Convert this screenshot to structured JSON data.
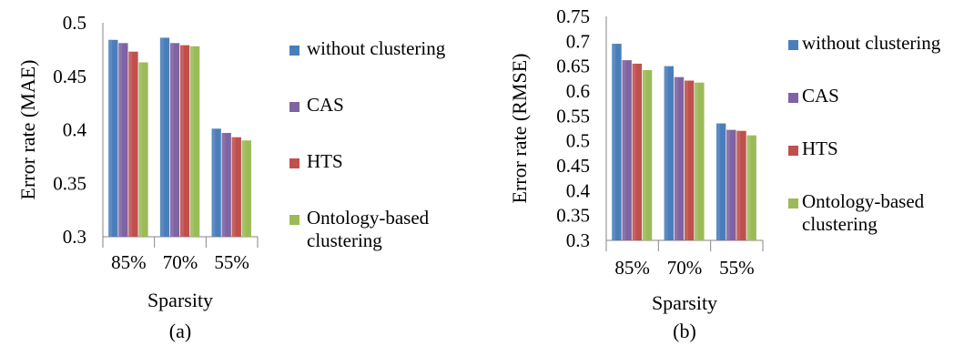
{
  "chart_data": [
    {
      "type": "bar",
      "caption": "(a)",
      "categories": [
        "85%",
        "70%",
        "55%"
      ],
      "xlabel": "Sparsity",
      "ylabel": "Error rate (MAE)",
      "ylim": [
        0.3,
        0.5
      ],
      "yticks": [
        "0.3",
        "0.35",
        "0.4",
        "0.45",
        "0.5"
      ],
      "grid": false,
      "legend_position": "right",
      "series": [
        {
          "name": "without clustering",
          "color": "#4A7EBB",
          "values": [
            0.484,
            0.486,
            0.401
          ]
        },
        {
          "name": "CAS",
          "color": "#7F63A2",
          "values": [
            0.481,
            0.481,
            0.397
          ]
        },
        {
          "name": "HTS",
          "color": "#C0504D",
          "values": [
            0.473,
            0.479,
            0.393
          ]
        },
        {
          "name": "Ontology-based clustering",
          "color": "#9BBB59",
          "values": [
            0.463,
            0.478,
            0.39
          ]
        }
      ]
    },
    {
      "type": "bar",
      "caption": "(b)",
      "categories": [
        "85%",
        "70%",
        "55%"
      ],
      "xlabel": "Sparsity",
      "ylabel": "Error rate (RMSE)",
      "ylim": [
        0.3,
        0.75
      ],
      "yticks": [
        "0.3",
        "0.35",
        "0.4",
        "0.45",
        "0.5",
        "0.55",
        "0.6",
        "0.65",
        "0.7",
        "0.75"
      ],
      "grid": false,
      "legend_position": "right",
      "series": [
        {
          "name": "without clustering",
          "color": "#4A7EBB",
          "values": [
            0.695,
            0.65,
            0.535
          ]
        },
        {
          "name": "CAS",
          "color": "#7F63A2",
          "values": [
            0.662,
            0.628,
            0.522
          ]
        },
        {
          "name": "HTS",
          "color": "#C0504D",
          "values": [
            0.655,
            0.621,
            0.52
          ]
        },
        {
          "name": "Ontology-based clustering",
          "color": "#9BBB59",
          "values": [
            0.642,
            0.617,
            0.511
          ]
        }
      ]
    }
  ]
}
